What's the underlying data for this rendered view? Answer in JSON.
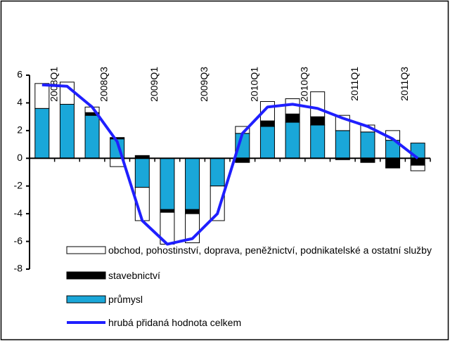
{
  "chart_data": {
    "type": "bar",
    "stacked": true,
    "categories": [
      "2008Q1",
      null,
      "2008Q3",
      null,
      "2009Q1",
      null,
      "2009Q3",
      null,
      "2010Q1",
      null,
      "2010Q3",
      null,
      "2011Q1",
      null,
      "2011Q3",
      null
    ],
    "series": [
      {
        "name": "obchod, pohostinství, doprava, peněžnictví, podnikatelské a ostatní služby",
        "color": "#ffffff",
        "values": [
          1.8,
          1.6,
          0.4,
          -0.6,
          -2.4,
          -2.3,
          -2.1,
          -2.5,
          0.5,
          1.4,
          1.1,
          1.8,
          1.1,
          0.5,
          0.7,
          -0.4
        ]
      },
      {
        "name": "stavebnictví",
        "color": "#000000",
        "values": [
          0.0,
          0.0,
          0.2,
          0.1,
          0.2,
          -0.2,
          -0.3,
          0.0,
          -0.3,
          0.4,
          0.6,
          0.6,
          -0.1,
          -0.3,
          -0.7,
          -0.5
        ]
      },
      {
        "name": "průmysl",
        "color": "#1aa7d9",
        "values": [
          3.6,
          3.9,
          3.1,
          1.4,
          -2.1,
          -3.7,
          -3.7,
          -2.0,
          1.8,
          2.3,
          2.6,
          2.4,
          2.0,
          1.9,
          1.3,
          1.1
        ]
      },
      {
        "name": "hrubá přidaná hodnota celkem",
        "color": "#1f1fff",
        "type": "line",
        "values": [
          5.3,
          5.2,
          3.7,
          1.2,
          -4.5,
          -6.2,
          -5.8,
          -4.0,
          1.8,
          3.7,
          3.9,
          3.6,
          2.9,
          2.3,
          1.4,
          0.0
        ]
      }
    ],
    "ylim": [
      -8,
      6
    ],
    "yticks": [
      -8,
      -6,
      -4,
      -2,
      0,
      2,
      4,
      6
    ]
  }
}
